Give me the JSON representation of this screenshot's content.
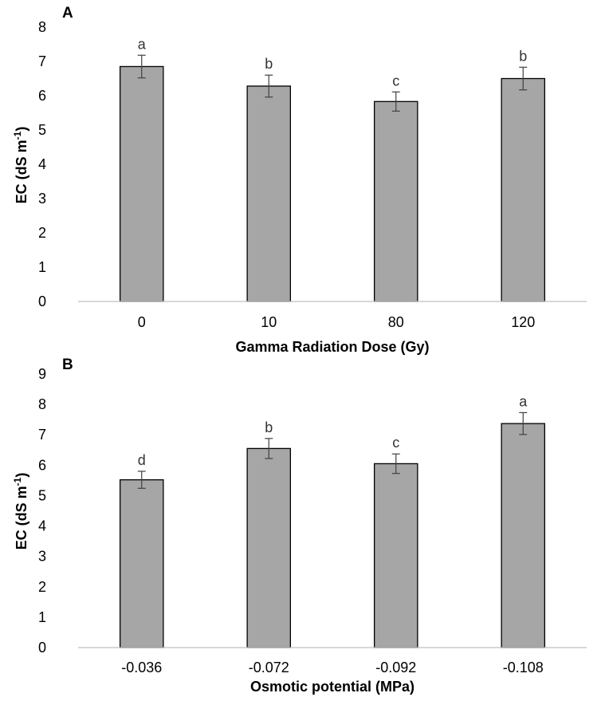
{
  "chart_data": [
    {
      "type": "bar",
      "panel": "A",
      "categories": [
        "0",
        "10",
        "80",
        "120"
      ],
      "values": [
        6.85,
        6.28,
        5.83,
        6.5
      ],
      "errors": [
        0.33,
        0.32,
        0.28,
        0.33
      ],
      "letters": [
        "a",
        "b",
        "c",
        "b"
      ],
      "xlabel": "Gamma Radiation Dose (Gy)",
      "ylabel": "EC (dS m",
      "ylabel_sup": "-1",
      "ylabel_close": ")",
      "ylim": [
        0,
        8
      ],
      "yticks": [
        "0",
        "1",
        "2",
        "3",
        "4",
        "5",
        "6",
        "7",
        "8"
      ],
      "grid": false,
      "bar_color": "#a6a6a6"
    },
    {
      "type": "bar",
      "panel": "B",
      "categories": [
        "-0.036",
        "-0.072",
        "-0.092",
        "-0.108"
      ],
      "values": [
        5.52,
        6.55,
        6.05,
        7.37
      ],
      "errors": [
        0.28,
        0.33,
        0.32,
        0.36
      ],
      "letters": [
        "d",
        "b",
        "c",
        "a"
      ],
      "xlabel": "Osmotic potential (MPa)",
      "ylabel": "EC (dS m",
      "ylabel_sup": "-1",
      "ylabel_close": ")",
      "ylim": [
        0,
        9
      ],
      "yticks": [
        "0",
        "1",
        "2",
        "3",
        "4",
        "5",
        "6",
        "7",
        "8",
        "9"
      ],
      "grid": false,
      "bar_color": "#a6a6a6"
    }
  ]
}
